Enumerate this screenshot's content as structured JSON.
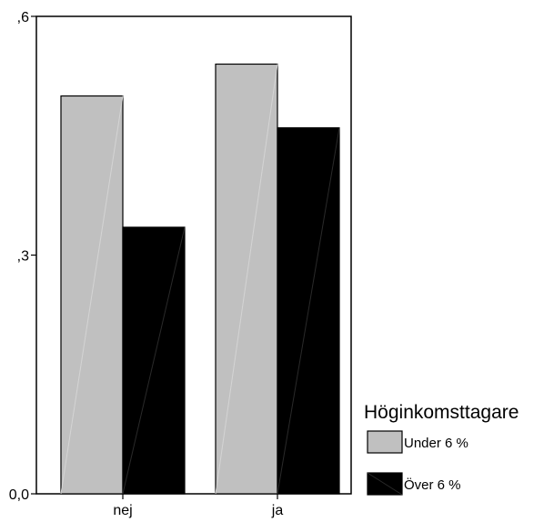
{
  "chart_data": {
    "type": "bar",
    "categories": [
      "nej",
      "ja"
    ],
    "series": [
      {
        "name": "Under 6 %",
        "values": [
          0.5,
          0.54
        ],
        "color": "#c0c0c0"
      },
      {
        "name": "Över 6 %",
        "values": [
          0.335,
          0.46
        ],
        "color": "#000000"
      }
    ],
    "yticks": [
      {
        "value": 0.0,
        "label": "0,0"
      },
      {
        "value": 0.3,
        "label": ",3"
      },
      {
        "value": 0.6,
        "label": ",6"
      }
    ],
    "ylim": [
      0,
      0.6
    ],
    "legend": {
      "title": "Höginkomsttagare",
      "position": "right"
    },
    "title": "",
    "xlabel": "",
    "ylabel": "",
    "grid": false
  }
}
